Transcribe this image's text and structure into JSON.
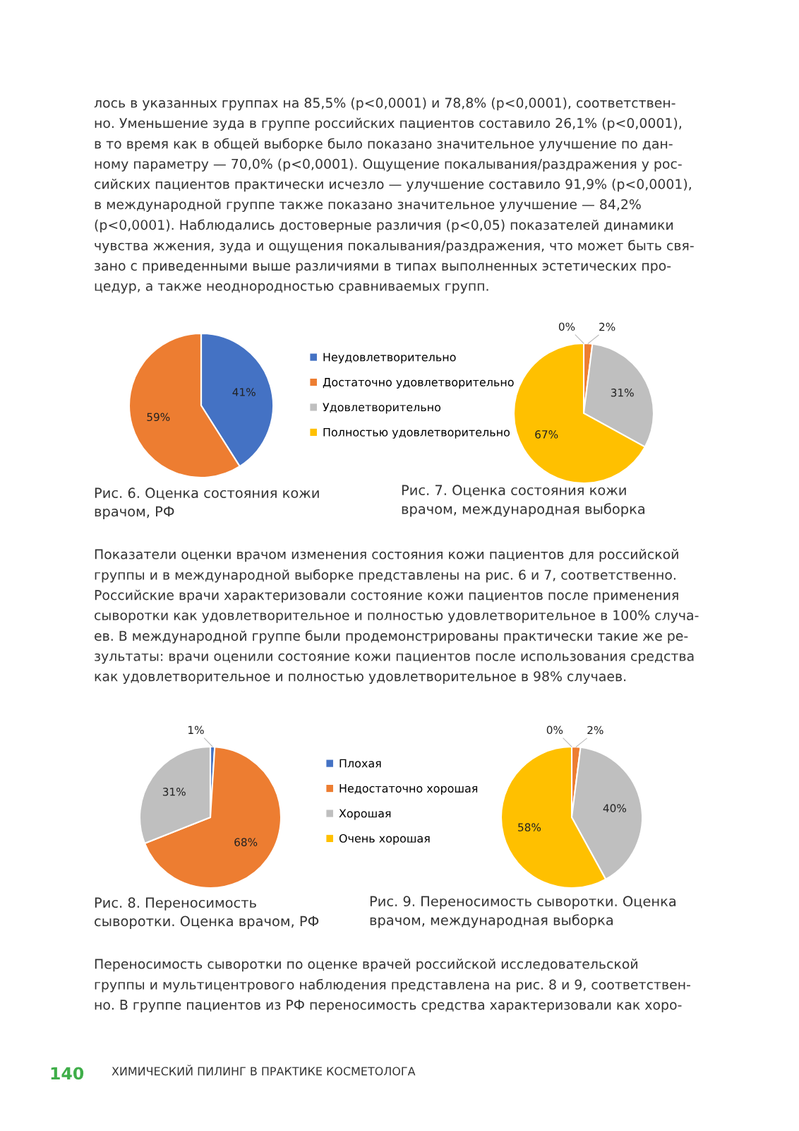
{
  "chart_data": [
    {
      "type": "pie",
      "title": "Рис. 6. Оценка состояния кожи\nврачом, РФ",
      "categories": [
        "Неудовлетворительно",
        "Достаточно удовлетворительно",
        "Удовлетворительно",
        "Полностью удовлетворительно"
      ],
      "values": [
        41,
        59,
        0,
        0
      ],
      "colors": [
        "#4472c4",
        "#ed7d31",
        "#bfbfbf",
        "#ffc000"
      ],
      "value_labels": [
        "41%",
        "59%",
        null,
        null
      ],
      "legend": "right",
      "annotations": [
        "лось в указанных группах на 85,5% (p<0,0001) и 78,8% (p<0,0001), соответствен-\nно. Уменьшение зуда в группе российских пациентов составило 26,1% (p<0,0001),\nв то время как в общей выборке было показано значительное улучшение по дан-\nному параметру — 70,0% (p<0,0001). Ощущение покалывания/раздражения у рос-\nсийских пациентов практически исчезло — улучшение составило 91,9% (p<0,0001),\nв международной группе также показано значительное улучшение — 84,2%\n(p<0,0001). Наблюдались достоверные различия (p<0,05) показателей динамики\nчувства жжения, зуда и ощущения покалывания/раздражения, что может быть свя-\nзано с приведенными выше различиями в типах выполненных эстетических про-\nцедур, а также неоднородностью сравниваемых групп."
      ]
    },
    {
      "type": "pie",
      "title": "Рис. 7. Оценка состояния кожи\nврачом, международная выборка",
      "categories": [
        null,
        null,
        null,
        null
      ],
      "values": [
        0,
        2,
        31,
        67
      ],
      "colors": [
        "#4472c4",
        "#ed7d31",
        "#bfbfbf",
        "#ffc000"
      ],
      "value_labels": [
        "0%",
        "2%",
        "31%",
        "67%"
      ],
      "annotations": [
        "Показатели оценки врачом изменения состояния кожи пациентов для российской\nгруппы и в международной выборке представлены на рис. 6 и 7, соответственно.\nРоссийские врачи характеризовали состояние кожи пациентов после применения\nсыворотки как удовлетворительное и полностью удовлетворительное в 100% случа-\nев. В международной группе были продемонстрированы практически такие же ре-\nзультаты: врачи оценили состояние кожи пациентов после использования средства\nкак удовлетворительное и полностью удовлетворительное в 98% случаев."
      ]
    },
    {
      "type": "pie",
      "title": "Рис. 8. Переносимость\nсыворотки. Оценка врачом, РФ",
      "categories": [
        "Плохая",
        "Недостаточно хорошая",
        "Хорошая",
        "Очень хорошая"
      ],
      "values": [
        1,
        68,
        31,
        0
      ],
      "colors": [
        "#4472c4",
        "#ed7d31",
        "#bfbfbf",
        "#ffc000"
      ],
      "value_labels": [
        "1%",
        "68%",
        "31%",
        null
      ],
      "legend": "right"
    },
    {
      "type": "pie",
      "title": "Рис. 9. Переносимость сыворотки. Оценка\nврачом, международная выборка",
      "categories": [
        null,
        null,
        null,
        null
      ],
      "values": [
        0,
        2,
        40,
        58
      ],
      "colors": [
        "#4472c4",
        "#ed7d31",
        "#bfbfbf",
        "#ffc000"
      ],
      "value_labels": [
        "0%",
        "2%",
        "40%",
        "58%"
      ],
      "annotations": [
        "Переносимость сыворотки по оценке врачей российской исследовательской\nгруппы и мультицентрового наблюдения представлена на рис. 8 и 9, соответствен-\nно. В группе пациентов из РФ переносимость средства характеризовали как хоро-",
        "140",
        "ХИМИЧЕСКИЙ ПИЛИНГ В ПРАКТИКЕ КОСМЕТОЛОГА"
      ]
    }
  ]
}
